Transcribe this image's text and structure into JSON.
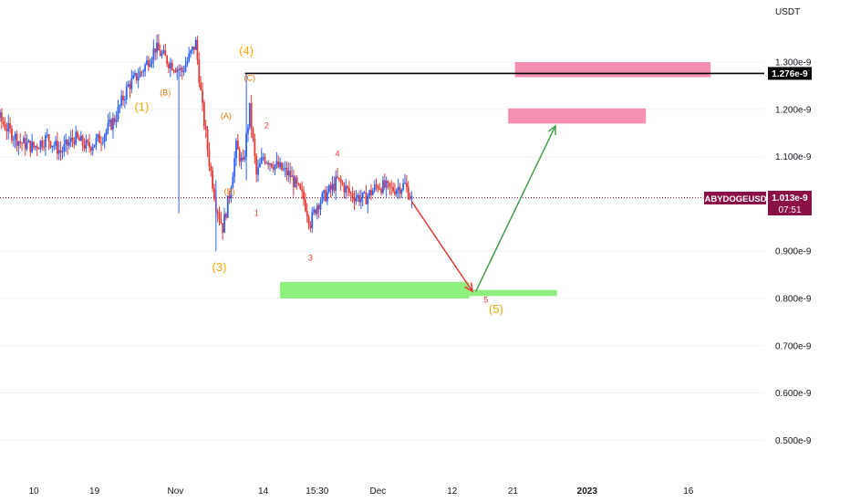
{
  "chart_data": {
    "type": "candlestick",
    "symbol": "BABYDOGEUSDT",
    "currency": "USDT",
    "current_price": "1.013e-9",
    "countdown": "07:51",
    "horizontal_line_label": "1.276e-9",
    "horizontal_line_value": 1.276,
    "y_ticks": [
      {
        "value": 1.3,
        "label": "1.300e-9"
      },
      {
        "value": 1.2,
        "label": "1.200e-9"
      },
      {
        "value": 1.1,
        "label": "1.100e-9"
      },
      {
        "value": 0.9,
        "label": "0.900e-9"
      },
      {
        "value": 0.8,
        "label": "0.800e-9"
      },
      {
        "value": 0.7,
        "label": "0.700e-9"
      },
      {
        "value": 0.6,
        "label": "0.600e-9"
      },
      {
        "value": 0.5,
        "label": "0.500e-9"
      }
    ],
    "x_ticks": [
      {
        "day": 10,
        "label": "10",
        "bold": false
      },
      {
        "day": 19,
        "label": "19",
        "bold": false
      },
      {
        "day": 31,
        "label": "Nov",
        "bold": false
      },
      {
        "day": 44,
        "label": "14",
        "bold": false
      },
      {
        "day": 52,
        "label": "15:30",
        "bold": false
      },
      {
        "day": 61,
        "label": "Dec",
        "bold": false
      },
      {
        "day": 72,
        "label": "12",
        "bold": false
      },
      {
        "day": 81,
        "label": "21",
        "bold": false
      },
      {
        "day": 92,
        "label": "2023",
        "bold": true
      },
      {
        "day": 107,
        "label": "16",
        "bold": false
      }
    ],
    "wave_labels": [
      {
        "text": "(1)",
        "day": 26,
        "price": 1.197,
        "color": "#f7a600",
        "size": 13
      },
      {
        "text": "(B)",
        "day": 29.5,
        "price": 1.23,
        "color": "#e37b0b",
        "size": 9
      },
      {
        "text": "(4)",
        "day": 41.5,
        "price": 1.315,
        "color": "#f7a600",
        "size": 13
      },
      {
        "text": "(C)",
        "day": 42,
        "price": 1.26,
        "color": "#e37b0b",
        "size": 9
      },
      {
        "text": "(A)",
        "day": 38.5,
        "price": 1.18,
        "color": "#e37b0b",
        "size": 9
      },
      {
        "text": "2",
        "day": 44.5,
        "price": 1.16,
        "color": "#e53935",
        "size": 9
      },
      {
        "text": "(B)",
        "day": 39,
        "price": 1.02,
        "color": "#e37b0b",
        "size": 9
      },
      {
        "text": "1",
        "day": 43,
        "price": 0.975,
        "color": "#e53935",
        "size": 9
      },
      {
        "text": "4",
        "day": 55,
        "price": 1.1,
        "color": "#e53935",
        "size": 9
      },
      {
        "text": "3",
        "day": 51,
        "price": 0.88,
        "color": "#e53935",
        "size": 9
      },
      {
        "text": "(3)",
        "day": 37.5,
        "price": 0.858,
        "color": "#f7a600",
        "size": 13
      },
      {
        "text": "5",
        "day": 77,
        "price": 0.791,
        "color": "#e53935",
        "size": 9
      },
      {
        "text": "(5)",
        "day": 78.5,
        "price": 0.769,
        "color": "#f7a600",
        "size": 13
      }
    ],
    "zones": [
      {
        "kind": "support",
        "day_start": 46.5,
        "day_end": 74.5,
        "price_low": 0.8,
        "price_high": 0.835,
        "color": "#8def7c"
      },
      {
        "kind": "support",
        "day_start": 73,
        "day_end": 87.5,
        "price_low": 0.805,
        "price_high": 0.818,
        "color": "#8def7c"
      },
      {
        "kind": "resistance",
        "day_start": 81.3,
        "day_end": 110.3,
        "price_low": 1.268,
        "price_high": 1.3,
        "color": "#f48fb1"
      },
      {
        "kind": "resistance",
        "day_start": 80.3,
        "day_end": 100.7,
        "price_low": 1.17,
        "price_high": 1.202,
        "color": "#f48fb1"
      }
    ],
    "arrows": [
      {
        "from": {
          "day": 66,
          "price": 1.005
        },
        "to": {
          "day": 75,
          "price": 0.815
        },
        "color": "#e53935"
      },
      {
        "from": {
          "day": 75.5,
          "price": 0.815
        },
        "to": {
          "day": 87.3,
          "price": 1.165
        },
        "color": "#43a047"
      }
    ]
  }
}
